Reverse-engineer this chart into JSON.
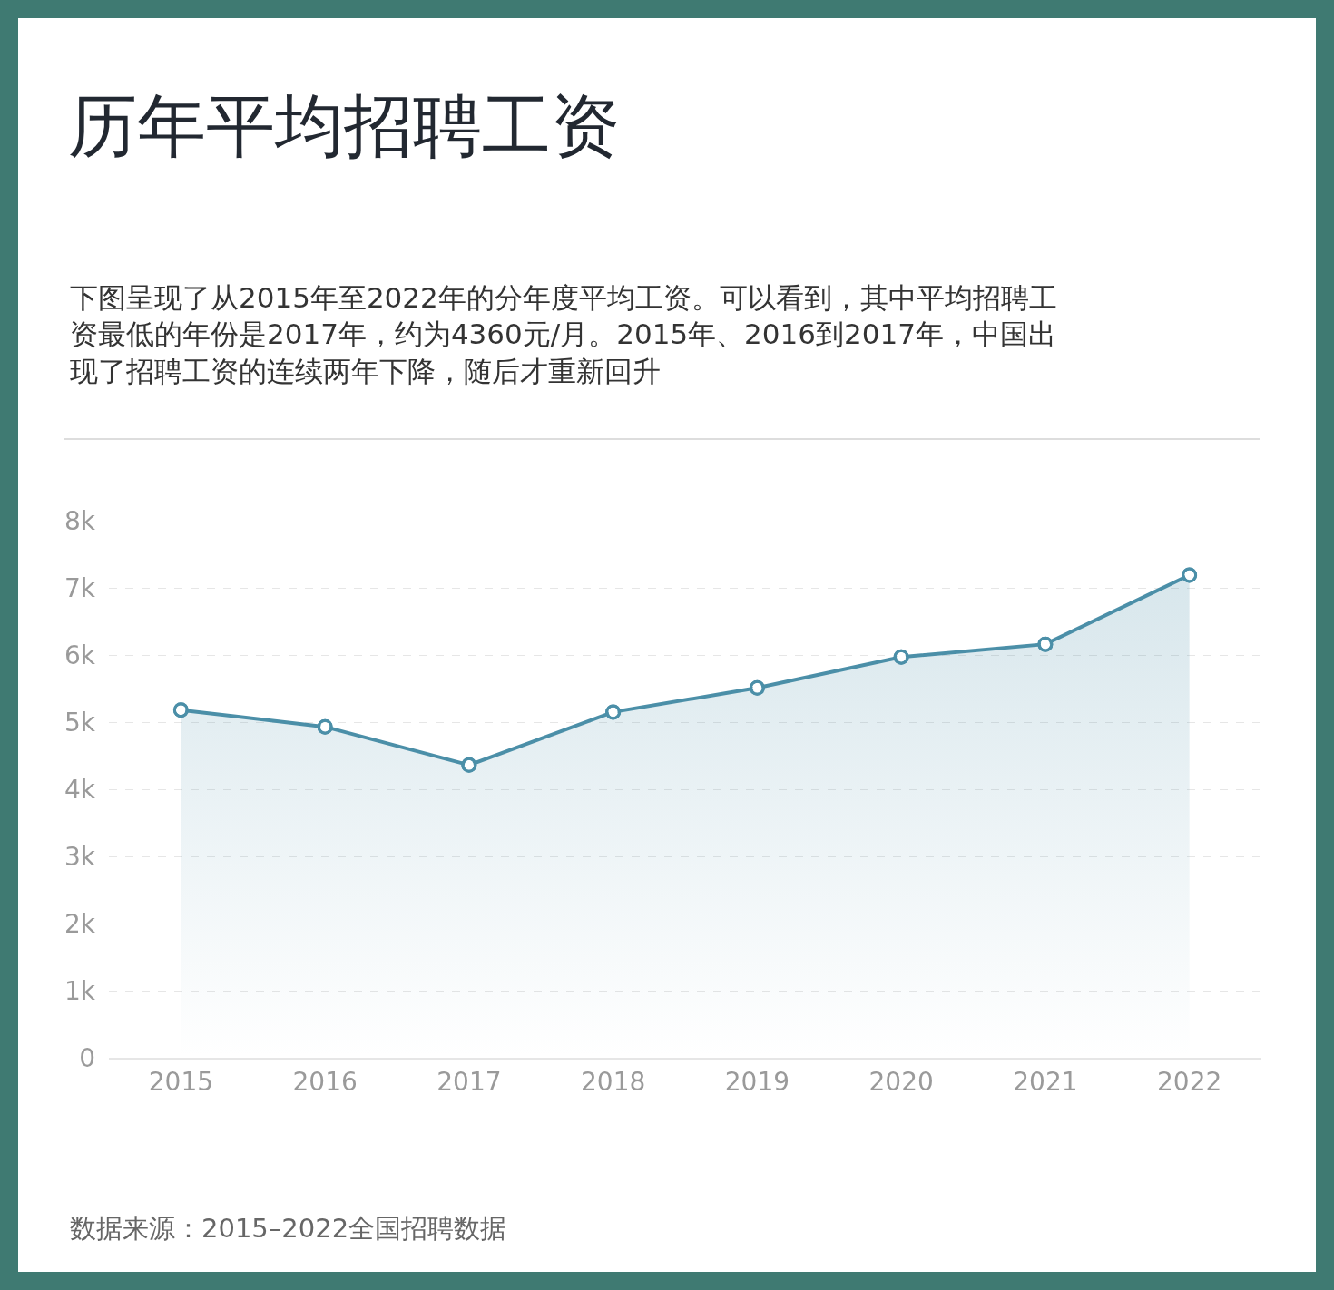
{
  "chart_data": {
    "type": "area",
    "title": "历年平均招聘工资",
    "subtitle": "下图呈现了从2015年至2022年的分年度平均工资。可以看到，其中平均招聘工资最低的年份是2017年，约为4360元/月。2015年、2016到2017年，中国出现了招聘工资的连续两年下降，随后才重新回升",
    "categories": [
      "2015",
      "2016",
      "2017",
      "2018",
      "2019",
      "2020",
      "2021",
      "2022"
    ],
    "series": [
      {
        "color": "#4b8fa8",
        "values": [
          5180,
          4930,
          4360,
          5150,
          5510,
          5970,
          6160,
          7190
        ]
      }
    ],
    "ylim": [
      0,
      8000
    ],
    "yticks": [
      0,
      {
        "value": 1000,
        "label": "1k"
      },
      {
        "value": 2000,
        "label": "2k"
      },
      {
        "value": 3000,
        "label": "3k"
      },
      {
        "value": 4000,
        "label": "4k"
      },
      {
        "value": 5000,
        "label": "5k"
      },
      {
        "value": 6000,
        "label": "6k"
      },
      {
        "value": 7000,
        "label": "7k"
      },
      {
        "value": 8000,
        "label": "8k"
      }
    ],
    "grid": "y",
    "marker": "circle",
    "line_style": "solid",
    "annotations": [
      "数据来源：2015–2022全国招聘数据"
    ]
  }
}
